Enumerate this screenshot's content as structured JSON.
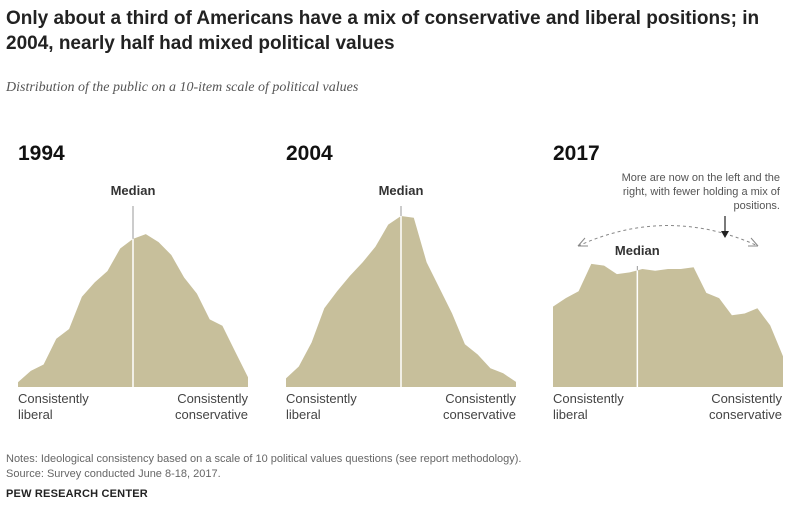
{
  "title": "Only about a third of Americans have a mix of conservative and liberal positions; in 2004, nearly half had mixed political values",
  "subtitle": "Distribution of the public on a 10-item scale of political values",
  "colors": {
    "fill": "#c7bf9b",
    "median_line": "#ffffff",
    "arrow": "#888888"
  },
  "chart_data": [
    {
      "type": "area",
      "title": "1994",
      "median_label": "Median",
      "xlabel_left": [
        "Consistently",
        "liberal"
      ],
      "xlabel_right": [
        "Consistently",
        "conservative"
      ],
      "x": [
        -9,
        -8,
        -7,
        -6,
        -5,
        -4,
        -3,
        -2,
        -1,
        0,
        1,
        2,
        3,
        4,
        5,
        6,
        7,
        8,
        9
      ],
      "values": [
        0.3,
        1.0,
        1.4,
        3.0,
        3.6,
        5.6,
        6.5,
        7.2,
        8.6,
        9.2,
        9.5,
        9.0,
        8.2,
        6.8,
        5.8,
        4.2,
        3.8,
        2.2,
        0.6
      ],
      "median_x": 0,
      "ylim": [
        0,
        10
      ]
    },
    {
      "type": "area",
      "title": "2004",
      "median_label": "Median",
      "xlabel_left": [
        "Consistently",
        "liberal"
      ],
      "xlabel_right": [
        "Consistently",
        "conservative"
      ],
      "x": [
        -9,
        -8,
        -7,
        -6,
        -5,
        -4,
        -3,
        -2,
        -1,
        0,
        1,
        2,
        3,
        4,
        5,
        6,
        7,
        8,
        9
      ],
      "values": [
        0.5,
        1.2,
        2.6,
        4.6,
        5.6,
        6.5,
        7.3,
        8.2,
        9.5,
        10.0,
        9.9,
        7.3,
        5.8,
        4.3,
        2.5,
        1.9,
        1.1,
        0.8,
        0.3
      ],
      "median_x": 0,
      "ylim": [
        0,
        10
      ]
    },
    {
      "type": "area",
      "title": "2017",
      "median_label": "Median",
      "xlabel_left": [
        "Consistently",
        "liberal"
      ],
      "xlabel_right": [
        "Consistently",
        "conservative"
      ],
      "x": [
        -9,
        -8,
        -7,
        -6,
        -5,
        -4,
        -3,
        -2,
        -1,
        0,
        1,
        2,
        3,
        4,
        5,
        6,
        7,
        8,
        9
      ],
      "values": [
        4.7,
        5.2,
        5.6,
        7.2,
        7.1,
        6.6,
        6.7,
        6.9,
        6.8,
        6.9,
        6.9,
        7.0,
        5.5,
        5.2,
        4.2,
        4.3,
        4.6,
        3.6,
        1.8
      ],
      "median_x": -2.4,
      "ylim": [
        0,
        10
      ],
      "annotation": "More are now on the left and the right, with fewer holding a mix of positions."
    }
  ],
  "notes": "Notes: Ideological consistency based on a scale of 10 political values questions (see report methodology).",
  "source": "Source: Survey conducted June 8-18, 2017.",
  "brand": "PEW RESEARCH CENTER"
}
